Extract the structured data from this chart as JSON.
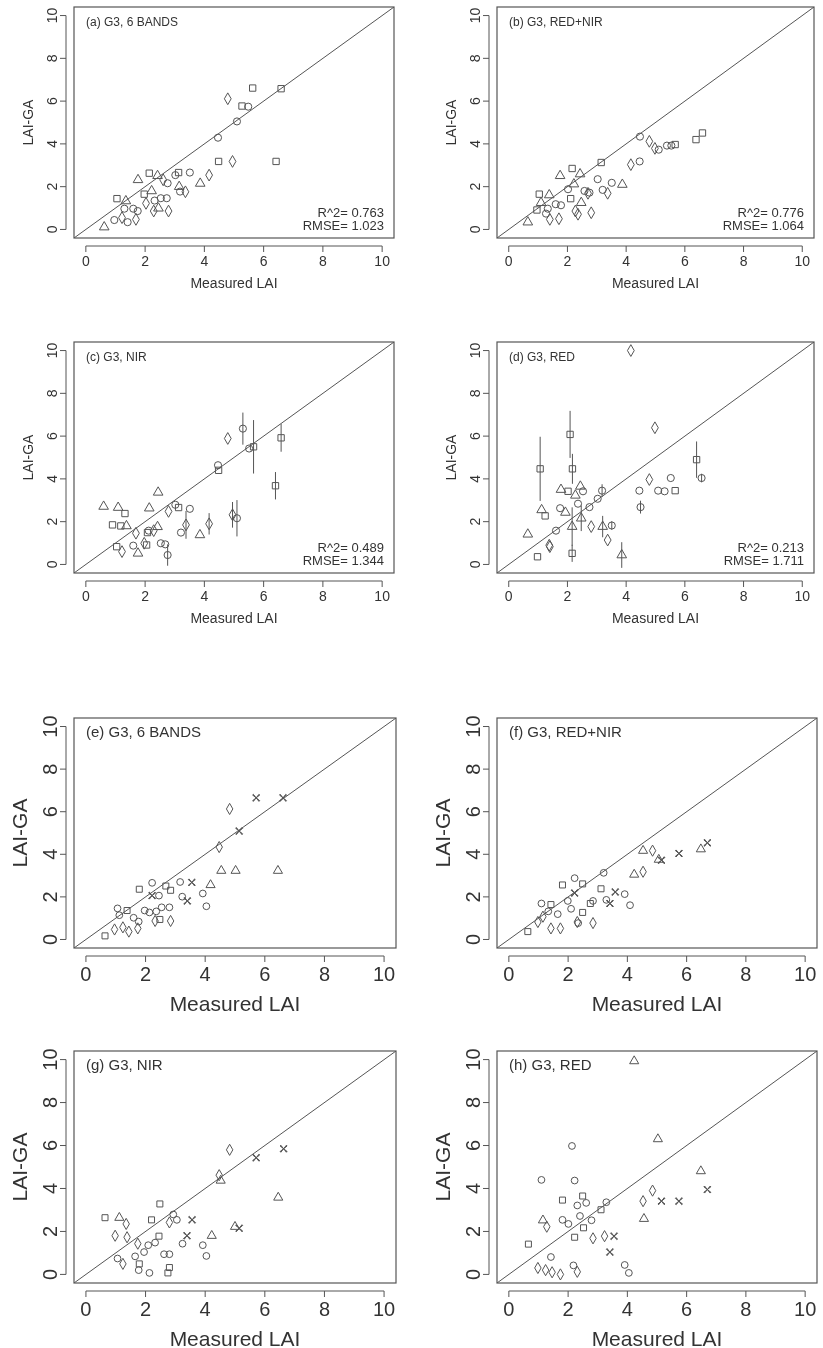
{
  "chart_data": [
    {
      "type": "scatter",
      "title": "(a) G3, 6 BANDS",
      "xlabel": "Measured LAI",
      "ylabel": "LAI-GA",
      "annotations": [
        "R^2= 0.763",
        "RMSE= 1.023"
      ],
      "xlim": [
        -0.4,
        10.4
      ],
      "ylim": [
        -0.4,
        10.4
      ],
      "xticks": [
        0,
        2,
        4,
        6,
        8,
        10
      ],
      "yticks": [
        0,
        2,
        4,
        6,
        8,
        10
      ],
      "series": [
        {
          "type": "line",
          "color": "#555555",
          "x": [
            -0.4,
            10.4
          ],
          "values": [
            -0.4,
            10.4
          ]
        },
        {
          "marker": "square",
          "color": "#555555",
          "x": [
            5.63,
            6.42,
            4.48,
            2.14,
            3.13,
            1.05,
            1.97,
            5.27,
            6.59
          ],
          "values": [
            6.61,
            3.18,
            3.18,
            2.63,
            2.66,
            1.44,
            1.65,
            5.77,
            6.58
          ]
        },
        {
          "marker": "circle",
          "color": "#555555",
          "x": [
            4.46,
            5.1,
            5.48,
            3.51,
            3.02,
            2.73,
            2.53,
            1.75,
            1.6,
            0.96,
            1.3,
            1.41,
            2.32,
            2.76,
            3.18
          ],
          "values": [
            4.29,
            5.05,
            5.74,
            2.66,
            2.54,
            1.46,
            1.46,
            0.86,
            0.97,
            0.44,
            0.97,
            0.34,
            1.35,
            2.16,
            1.77
          ]
        },
        {
          "marker": "triangle",
          "color": "#555555",
          "x": [
            0.62,
            1.76,
            2.42,
            3.86,
            3.15,
            2.45,
            2.22,
            1.35
          ],
          "values": [
            0.11,
            2.32,
            2.51,
            2.15,
            2.0,
            0.99,
            1.8,
            1.33
          ]
        },
        {
          "marker": "diamond",
          "color": "#555555",
          "x": [
            4.79,
            4.95,
            4.16,
            3.36,
            2.79,
            2.29,
            1.69,
            1.22,
            2.03,
            2.61
          ],
          "values": [
            6.11,
            3.18,
            2.54,
            1.76,
            0.86,
            0.86,
            0.47,
            0.55,
            1.22,
            2.32
          ]
        }
      ]
    },
    {
      "type": "scatter",
      "title": "(b) G3, RED+NIR",
      "xlabel": "Measured LAI",
      "ylabel": "LAI-GA",
      "annotations": [
        "R^2= 0.776",
        "RMSE= 1.064"
      ],
      "xlim": [
        -0.4,
        10.4
      ],
      "ylim": [
        -0.4,
        10.4
      ],
      "xticks": [
        0,
        2,
        4,
        6,
        8,
        10
      ],
      "yticks": [
        0,
        2,
        4,
        6,
        8,
        10
      ],
      "series": [
        {
          "type": "line",
          "color": "#555555",
          "x": [
            -0.4,
            10.4
          ],
          "values": [
            -0.4,
            10.4
          ]
        },
        {
          "marker": "square",
          "color": "#555555",
          "x": [
            6.6,
            6.38,
            3.15,
            2.16,
            1.04,
            0.96,
            2.11,
            5.67
          ],
          "values": [
            4.51,
            4.2,
            3.13,
            2.85,
            1.65,
            0.91,
            1.44,
            3.97
          ]
        },
        {
          "marker": "circle",
          "color": "#555555",
          "x": [
            4.47,
            4.46,
            5.39,
            5.11,
            5.54,
            3.51,
            3.03,
            3.2,
            2.58,
            1.6,
            1.78,
            1.33,
            1.27,
            2.02,
            2.75
          ],
          "values": [
            4.34,
            3.18,
            3.92,
            3.73,
            3.92,
            2.18,
            2.35,
            1.85,
            1.8,
            1.18,
            1.13,
            0.97,
            0.74,
            1.88,
            1.72
          ]
        },
        {
          "marker": "triangle",
          "color": "#555555",
          "x": [
            0.65,
            1.75,
            2.43,
            3.87,
            2.22,
            2.47,
            1.38,
            1.1
          ],
          "values": [
            0.34,
            2.51,
            2.59,
            2.1,
            2.12,
            1.25,
            1.61,
            1.25
          ]
        },
        {
          "marker": "diamond",
          "color": "#555555",
          "x": [
            4.79,
            4.98,
            4.16,
            3.37,
            2.81,
            2.36,
            1.71,
            1.4,
            2.27,
            2.7
          ],
          "values": [
            4.12,
            3.79,
            3.03,
            1.69,
            0.78,
            0.71,
            0.5,
            0.47,
            0.86,
            1.69
          ]
        }
      ]
    },
    {
      "type": "scatter",
      "title": "(c) G3, NIR",
      "xlabel": "Measured LAI",
      "ylabel": "LAI-GA",
      "annotations": [
        "R^2= 0.489",
        "RMSE= 1.344"
      ],
      "xlim": [
        -0.4,
        10.4
      ],
      "ylim": [
        -0.4,
        10.4
      ],
      "xticks": [
        0,
        2,
        4,
        6,
        8,
        10
      ],
      "yticks": [
        0,
        2,
        4,
        6,
        8,
        10
      ],
      "series": [
        {
          "type": "line",
          "color": "#555555",
          "x": [
            -0.4,
            10.4
          ],
          "values": [
            -0.4,
            10.4
          ]
        },
        {
          "marker": "square",
          "color": "#555555",
          "x": [
            6.59,
            6.4,
            5.66,
            4.48,
            1.32,
            0.9,
            1.18,
            3.13,
            2.08,
            2.05,
            1.04
          ],
          "values": [
            5.92,
            3.68,
            5.5,
            4.4,
            2.38,
            1.85,
            1.8,
            2.66,
            1.49,
            0.91,
            0.83
          ],
          "errors": [
            0.65,
            0.64,
            1.25,
            null,
            null,
            null,
            null,
            null,
            null,
            null,
            null
          ]
        },
        {
          "marker": "circle",
          "color": "#555555",
          "x": [
            5.3,
            5.51,
            4.46,
            5.1,
            3.51,
            3.02,
            3.21,
            2.12,
            1.6,
            2.53,
            2.68,
            2.76
          ],
          "values": [
            6.35,
            5.42,
            4.64,
            2.16,
            2.6,
            2.79,
            1.49,
            1.58,
            0.88,
            0.99,
            0.94,
            0.44
          ],
          "errors": [
            0.75,
            null,
            null,
            0.85,
            null,
            null,
            null,
            null,
            null,
            null,
            null,
            0.5
          ]
        },
        {
          "marker": "triangle",
          "color": "#555555",
          "x": [
            0.6,
            1.09,
            2.44,
            2.14,
            1.37,
            3.85,
            1.76,
            2.42
          ],
          "values": [
            2.71,
            2.66,
            3.37,
            2.63,
            1.8,
            1.38,
            0.52,
            1.76
          ]
        },
        {
          "marker": "diamond",
          "color": "#555555",
          "x": [
            4.79,
            4.95,
            4.16,
            3.38,
            2.79,
            2.29,
            1.69,
            1.22,
            1.97
          ],
          "values": [
            5.89,
            2.32,
            1.9,
            1.85,
            2.48,
            1.58,
            1.46,
            0.6,
            0.99
          ],
          "errors": [
            null,
            0.6,
            0.5,
            0.65,
            null,
            null,
            null,
            null,
            null
          ]
        }
      ]
    },
    {
      "type": "scatter",
      "title": "(d) G3, RED",
      "xlabel": "Measured LAI",
      "ylabel": "LAI-GA",
      "annotations": [
        "R^2= 0.213",
        "RMSE= 1.711"
      ],
      "xlim": [
        -0.4,
        10.4
      ],
      "ylim": [
        -0.4,
        10.4
      ],
      "xticks": [
        0,
        2,
        4,
        6,
        8,
        10
      ],
      "yticks": [
        0,
        2,
        4,
        6,
        8,
        10
      ],
      "series": [
        {
          "type": "line",
          "color": "#555555",
          "x": [
            -0.4,
            10.4
          ],
          "values": [
            -0.4,
            10.4
          ]
        },
        {
          "marker": "square",
          "color": "#555555",
          "x": [
            1.07,
            2.09,
            2.17,
            1.24,
            6.4,
            5.67,
            2.02,
            0.98,
            2.16
          ],
          "values": [
            4.47,
            6.08,
            4.47,
            2.27,
            4.9,
            3.45,
            3.42,
            0.36,
            0.52
          ],
          "errors": [
            1.5,
            1.1,
            0.7,
            null,
            0.85,
            null,
            null,
            null,
            0.4
          ]
        },
        {
          "marker": "circle",
          "color": "#555555",
          "x": [
            6.57,
            5.52,
            5.31,
            5.09,
            4.45,
            4.49,
            3.18,
            3.03,
            2.53,
            2.36,
            2.75,
            1.75,
            1.61,
            3.51
          ],
          "values": [
            4.04,
            4.04,
            3.42,
            3.45,
            3.45,
            2.68,
            3.45,
            3.07,
            3.42,
            2.84,
            2.68,
            2.63,
            1.58,
            1.82
          ],
          "errors": [
            0.2,
            null,
            null,
            null,
            null,
            0.3,
            0.3,
            null,
            null,
            null,
            null,
            null,
            null,
            0.2
          ]
        },
        {
          "marker": "triangle",
          "color": "#555555",
          "x": [
            0.65,
            1.12,
            1.78,
            1.93,
            2.27,
            2.44,
            2.16,
            2.47,
            3.2,
            3.85
          ],
          "values": [
            1.41,
            2.55,
            3.5,
            2.43,
            3.23,
            3.65,
            1.77,
            2.16,
            1.77,
            0.44
          ],
          "errors": [
            null,
            null,
            null,
            null,
            null,
            null,
            0.9,
            0.6,
            0.5,
            0.6
          ]
        },
        {
          "marker": "diamond",
          "color": "#555555",
          "x": [
            4.16,
            4.98,
            4.79,
            3.37,
            2.81,
            1.4,
            1.38
          ],
          "values": [
            10.0,
            6.39,
            3.97,
            1.14,
            1.77,
            0.83,
            0.9
          ]
        }
      ]
    },
    {
      "type": "scatter",
      "title": "(e) G3, 6 BANDS",
      "xlabel": "Measured LAI",
      "ylabel": "LAI-GA",
      "xlim": [
        -0.4,
        10.4
      ],
      "ylim": [
        -0.4,
        10.4
      ],
      "xticks": [
        0,
        2,
        4,
        6,
        8,
        10
      ],
      "yticks": [
        0,
        2,
        4,
        6,
        8,
        10
      ],
      "series": [
        {
          "type": "line",
          "color": "#555555",
          "x": [
            -0.4,
            10.4
          ],
          "values": [
            -0.4,
            10.4
          ]
        },
        {
          "marker": "square",
          "color": "#555555",
          "x": [
            0.64,
            1.79,
            2.68,
            2.48,
            2.84,
            1.38
          ],
          "values": [
            0.17,
            2.36,
            2.51,
            0.94,
            2.31,
            1.36
          ]
        },
        {
          "marker": "circle",
          "color": "#555555",
          "x": [
            1.06,
            2.22,
            3.16,
            3.92,
            4.04,
            2.8,
            2.54,
            1.77,
            1.6,
            1.97,
            2.13,
            2.36,
            3.23,
            2.45,
            1.12
          ],
          "values": [
            1.46,
            2.66,
            2.7,
            2.16,
            1.56,
            1.51,
            1.51,
            0.84,
            1.02,
            1.36,
            1.27,
            1.32,
            2.01,
            2.06,
            1.14
          ]
        },
        {
          "marker": "triangle",
          "color": "#555555",
          "x": [
            4.54,
            5.02,
            6.44,
            4.18
          ],
          "values": [
            3.23,
            3.23,
            3.23,
            2.56
          ]
        },
        {
          "marker": "diamond",
          "color": "#555555",
          "x": [
            4.82,
            4.47,
            2.84,
            2.32,
            1.74,
            1.44,
            1.24,
            0.96
          ],
          "values": [
            6.13,
            4.34,
            0.87,
            0.87,
            0.52,
            0.37,
            0.57,
            0.47
          ]
        },
        {
          "marker": "cross",
          "color": "#555555",
          "x": [
            5.71,
            6.61,
            5.14,
            3.55,
            3.4,
            2.22
          ],
          "values": [
            6.65,
            6.65,
            5.09,
            2.68,
            1.81,
            2.06
          ]
        }
      ]
    },
    {
      "type": "scatter",
      "title": "(f) G3, RED+NIR",
      "xlabel": "Measured LAI",
      "ylabel": "LAI-GA",
      "xlim": [
        -0.4,
        10.4
      ],
      "ylim": [
        -0.4,
        10.4
      ],
      "xticks": [
        0,
        2,
        4,
        6,
        8,
        10
      ],
      "yticks": [
        0,
        2,
        4,
        6,
        8,
        10
      ],
      "series": [
        {
          "type": "line",
          "color": "#555555",
          "x": [
            -0.4,
            10.4
          ],
          "values": [
            -0.4,
            10.4
          ]
        },
        {
          "marker": "square",
          "color": "#555555",
          "x": [
            0.64,
            1.81,
            2.49,
            3.11,
            2.49,
            1.42,
            2.75
          ],
          "values": [
            0.37,
            2.56,
            2.61,
            2.38,
            1.27,
            1.64,
            1.69
          ]
        },
        {
          "marker": "circle",
          "color": "#555555",
          "x": [
            1.1,
            2.22,
            3.2,
            3.91,
            4.09,
            3.29,
            1.99,
            2.1,
            1.65,
            1.33,
            2.34,
            2.84
          ],
          "values": [
            1.69,
            2.88,
            3.13,
            2.13,
            1.61,
            1.86,
            1.81,
            1.44,
            1.19,
            1.32,
            0.77,
            1.81
          ]
        },
        {
          "marker": "triangle",
          "color": "#555555",
          "x": [
            4.53,
            5.06,
            6.48,
            4.23
          ],
          "values": [
            4.17,
            3.75,
            4.24,
            3.05
          ]
        },
        {
          "marker": "diamond",
          "color": "#555555",
          "x": [
            4.85,
            4.53,
            2.84,
            2.31,
            1.74,
            1.42,
            0.98,
            1.15
          ],
          "values": [
            4.17,
            3.18,
            0.77,
            0.82,
            0.52,
            0.52,
            0.82,
            1.07
          ]
        },
        {
          "marker": "cross",
          "color": "#555555",
          "x": [
            6.7,
            5.74,
            5.15,
            3.59,
            3.41,
            2.22
          ],
          "values": [
            4.54,
            4.04,
            3.72,
            2.23,
            1.69,
            2.18
          ]
        }
      ]
    },
    {
      "type": "scatter",
      "title": "(g) G3, NIR",
      "xlabel": "Measured LAI",
      "ylabel": "LAI-GA",
      "xlim": [
        -0.4,
        10.4
      ],
      "ylim": [
        -0.4,
        10.4
      ],
      "xticks": [
        0,
        2,
        4,
        6,
        8,
        10
      ],
      "yticks": [
        0,
        2,
        4,
        6,
        8,
        10
      ],
      "series": [
        {
          "type": "line",
          "color": "#555555",
          "x": [
            -0.4,
            10.4
          ],
          "values": [
            -0.4,
            10.4
          ]
        },
        {
          "marker": "square",
          "color": "#555555",
          "x": [
            0.64,
            2.48,
            2.8,
            2.75,
            1.79,
            2.2,
            2.45
          ],
          "values": [
            2.64,
            3.28,
            0.32,
            0.07,
            0.49,
            2.54,
            1.78
          ]
        },
        {
          "marker": "circle",
          "color": "#555555",
          "x": [
            1.06,
            1.77,
            2.13,
            3.92,
            4.04,
            3.24,
            2.93,
            3.05,
            2.8,
            1.95,
            2.32,
            1.65,
            2.09,
            2.62
          ],
          "values": [
            0.74,
            0.2,
            0.07,
            1.36,
            0.86,
            1.43,
            2.79,
            2.54,
            0.94,
            1.04,
            1.48,
            0.84,
            1.36,
            0.94
          ]
        },
        {
          "marker": "triangle",
          "color": "#555555",
          "x": [
            1.12,
            4.52,
            6.45,
            5.0,
            4.22
          ],
          "values": [
            2.64,
            4.37,
            3.58,
            2.22,
            1.8
          ]
        },
        {
          "marker": "diamond",
          "color": "#555555",
          "x": [
            4.82,
            4.47,
            0.98,
            1.35,
            1.24,
            1.74,
            2.8,
            1.38
          ],
          "values": [
            5.8,
            4.62,
            1.8,
            2.35,
            0.49,
            1.43,
            2.42,
            1.73
          ]
        },
        {
          "marker": "cross",
          "color": "#555555",
          "x": [
            5.71,
            6.63,
            5.14,
            3.56,
            3.39
          ],
          "values": [
            5.43,
            5.85,
            2.15,
            2.54,
            1.8
          ]
        }
      ]
    },
    {
      "type": "scatter",
      "title": "(h) G3, RED",
      "xlabel": "Measured LAI",
      "ylabel": "LAI-GA",
      "xlim": [
        -0.4,
        10.4
      ],
      "ylim": [
        -0.4,
        10.4
      ],
      "xticks": [
        0,
        2,
        4,
        6,
        8,
        10
      ],
      "yticks": [
        0,
        2,
        4,
        6,
        8,
        10
      ],
      "series": [
        {
          "type": "line",
          "color": "#555555",
          "x": [
            -0.4,
            10.4
          ],
          "values": [
            -0.4,
            10.4
          ]
        },
        {
          "marker": "square",
          "color": "#555555",
          "x": [
            0.66,
            1.81,
            2.49,
            2.52,
            3.11,
            2.22
          ],
          "values": [
            1.41,
            3.46,
            3.65,
            2.17,
            3.01,
            1.73
          ]
        },
        {
          "marker": "circle",
          "color": "#555555",
          "x": [
            1.1,
            2.13,
            2.22,
            1.81,
            2.01,
            2.31,
            2.4,
            2.79,
            3.29,
            3.91,
            4.05,
            2.18,
            1.42,
            2.61
          ],
          "values": [
            4.4,
            5.98,
            4.37,
            2.54,
            2.35,
            3.21,
            2.72,
            2.52,
            3.36,
            0.44,
            0.07,
            0.42,
            0.81,
            3.33
          ]
        },
        {
          "marker": "triangle",
          "color": "#555555",
          "x": [
            4.23,
            5.03,
            6.48,
            4.56,
            1.15
          ],
          "values": [
            9.93,
            6.3,
            4.81,
            2.59,
            2.52
          ]
        },
        {
          "marker": "diamond",
          "color": "#555555",
          "x": [
            4.85,
            4.53,
            2.84,
            3.23,
            2.31,
            1.74,
            1.24,
            0.98,
            1.28,
            1.46
          ],
          "values": [
            3.9,
            3.41,
            1.68,
            1.78,
            0.12,
            0.0,
            0.2,
            0.3,
            2.22,
            0.1
          ]
        },
        {
          "marker": "cross",
          "color": "#555555",
          "x": [
            5.74,
            6.7,
            5.15,
            3.55,
            3.41
          ],
          "values": [
            3.41,
            3.95,
            3.41,
            1.78,
            1.04
          ]
        }
      ]
    }
  ]
}
